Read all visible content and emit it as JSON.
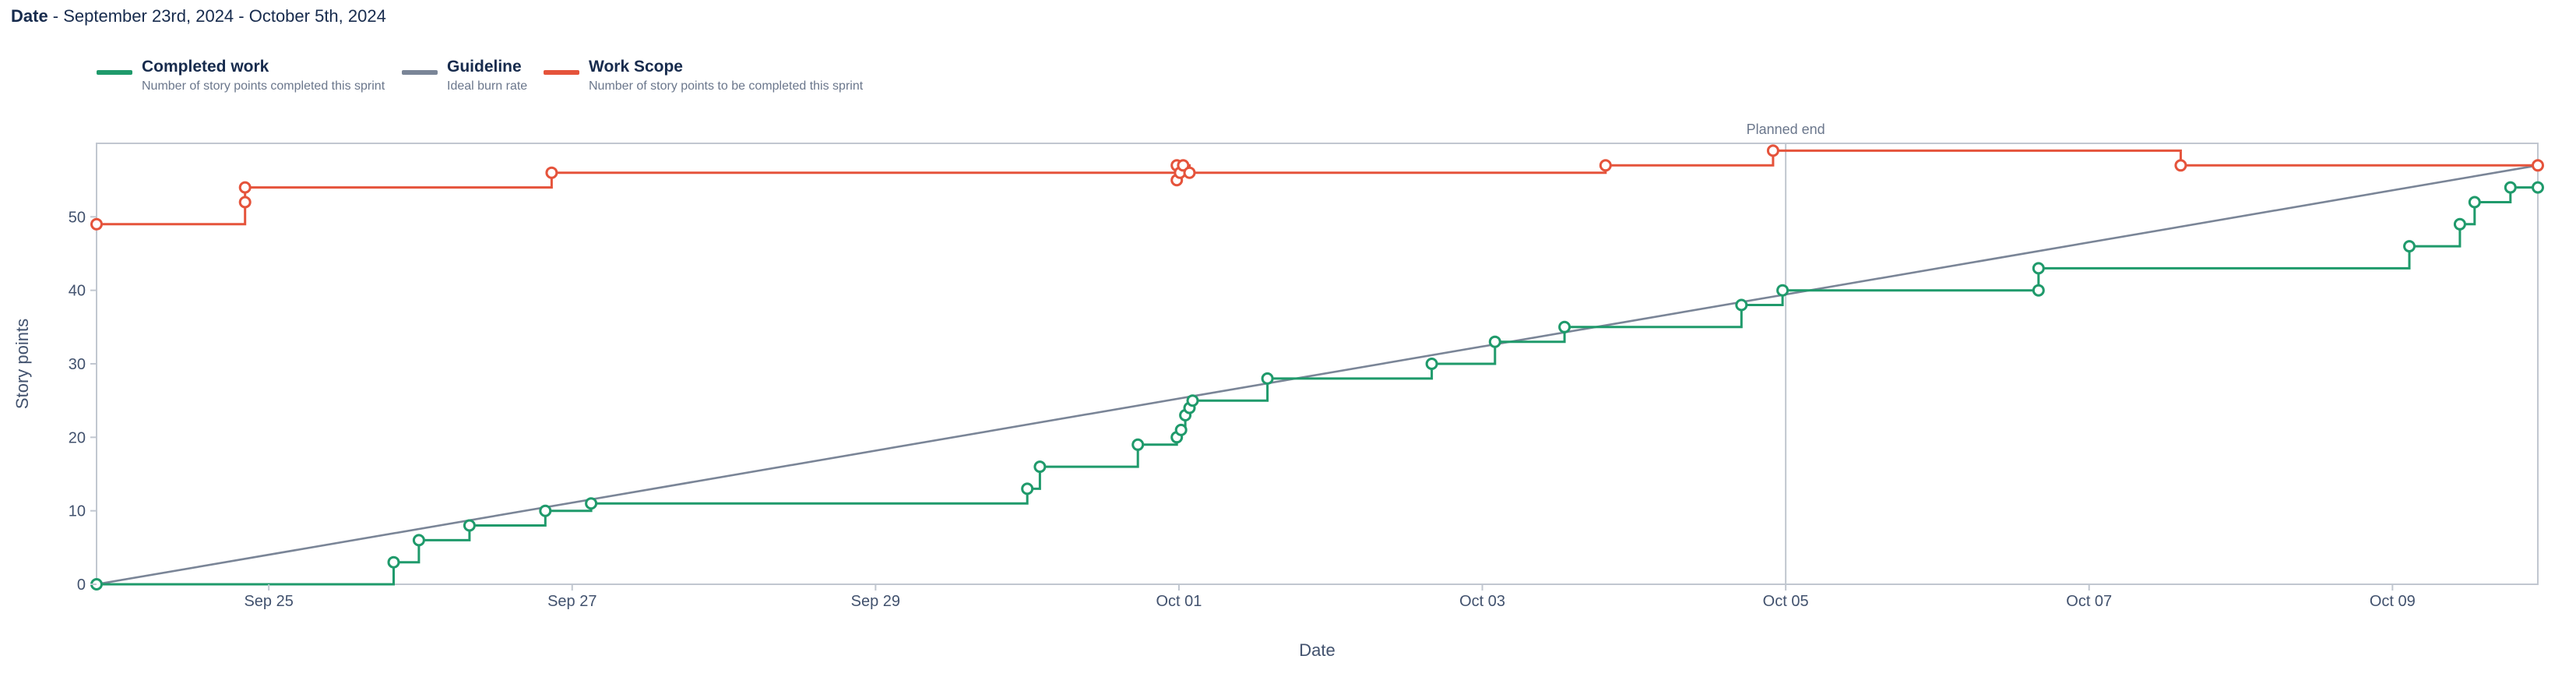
{
  "header": {
    "label": "Date",
    "range": " - September 23rd, 2024 - October 5th, 2024"
  },
  "legend": [
    {
      "title": "Completed work",
      "desc": "Number of story points completed this sprint",
      "color": "#1f9a6b"
    },
    {
      "title": "Guideline",
      "desc": "Ideal burn rate",
      "color": "#7a8597"
    },
    {
      "title": "Work Scope",
      "desc": "Number of story points to be completed this sprint",
      "color": "#e5533b"
    }
  ],
  "chart_data": {
    "type": "line",
    "xlabel": "Date",
    "ylabel": "Story points",
    "x_start": "2024-09-23T20:45",
    "x_end": "2024-10-09T23:00",
    "ylim": [
      0,
      60
    ],
    "y_ticks": [
      0,
      10,
      20,
      30,
      40,
      50
    ],
    "x_ticks": [
      {
        "date": "2024-09-25T00:00",
        "label": "Sep 25"
      },
      {
        "date": "2024-09-27T00:00",
        "label": "Sep 27"
      },
      {
        "date": "2024-09-29T00:00",
        "label": "Sep 29"
      },
      {
        "date": "2024-10-01T00:00",
        "label": "Oct 01"
      },
      {
        "date": "2024-10-03T00:00",
        "label": "Oct 03"
      },
      {
        "date": "2024-10-05T00:00",
        "label": "Oct 05"
      },
      {
        "date": "2024-10-07T00:00",
        "label": "Oct 07"
      },
      {
        "date": "2024-10-09T00:00",
        "label": "Oct 09"
      }
    ],
    "planned_end": {
      "date": "2024-10-05T00:00",
      "label": "Planned end"
    },
    "grid": false,
    "legend_position": "top-left",
    "series": [
      {
        "name": "Completed work",
        "color": "#1f9a6b",
        "step": true,
        "points": [
          [
            "2024-09-23T20:45",
            0
          ],
          [
            "2024-09-25T19:45",
            3
          ],
          [
            "2024-09-25T23:45",
            6
          ],
          [
            "2024-09-26T07:45",
            8
          ],
          [
            "2024-09-26T19:45",
            10
          ],
          [
            "2024-09-27T03:00",
            11
          ],
          [
            "2024-09-30T00:00",
            13
          ],
          [
            "2024-09-30T02:00",
            16
          ],
          [
            "2024-09-30T17:30",
            19
          ],
          [
            "2024-09-30T23:40",
            20
          ],
          [
            "2024-10-01T00:20",
            21
          ],
          [
            "2024-10-01T01:00",
            23
          ],
          [
            "2024-10-01T01:40",
            24
          ],
          [
            "2024-10-01T02:10",
            25
          ],
          [
            "2024-10-01T14:00",
            28
          ],
          [
            "2024-10-02T16:00",
            30
          ],
          [
            "2024-10-03T02:00",
            33
          ],
          [
            "2024-10-03T13:00",
            35
          ],
          [
            "2024-10-04T17:00",
            38
          ],
          [
            "2024-10-04T23:30",
            40
          ],
          [
            "2024-10-06T16:00",
            40
          ],
          [
            "2024-10-06T16:00",
            43
          ],
          [
            "2024-10-09T02:40",
            46
          ],
          [
            "2024-10-09T10:40",
            49
          ],
          [
            "2024-10-09T13:00",
            52
          ],
          [
            "2024-10-09T18:40",
            54
          ],
          [
            "2024-10-09T23:00",
            54
          ]
        ]
      },
      {
        "name": "Guideline",
        "color": "#7a8597",
        "step": false,
        "markers": false,
        "points": [
          [
            "2024-09-23T20:45",
            0
          ],
          [
            "2024-10-09T23:00",
            57
          ]
        ]
      },
      {
        "name": "Work Scope",
        "color": "#e5533b",
        "step": true,
        "points": [
          [
            "2024-09-23T20:45",
            49
          ],
          [
            "2024-09-24T20:15",
            52
          ],
          [
            "2024-09-24T20:15",
            54
          ],
          [
            "2024-09-26T20:45",
            56
          ],
          [
            "2024-09-30T23:40",
            55
          ],
          [
            "2024-09-30T23:40",
            57
          ],
          [
            "2024-10-01T00:10",
            56
          ],
          [
            "2024-10-01T00:40",
            57
          ],
          [
            "2024-10-01T01:40",
            56
          ],
          [
            "2024-10-03T19:30",
            57
          ],
          [
            "2024-10-04T22:00",
            59
          ],
          [
            "2024-10-07T14:30",
            57
          ],
          [
            "2024-10-09T23:00",
            57
          ]
        ]
      }
    ]
  }
}
